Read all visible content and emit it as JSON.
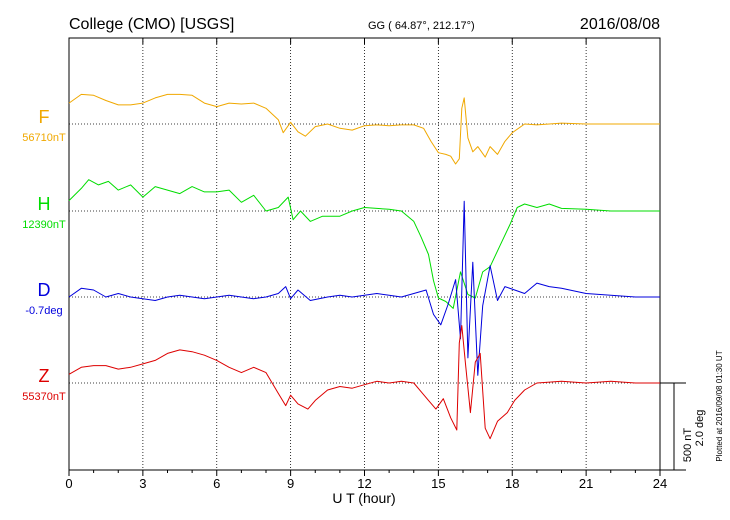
{
  "header": {
    "station": "College (CMO)  [USGS]",
    "coords": "GG ( 64.87°, 212.17°)",
    "date": "2016/08/08"
  },
  "footer": {
    "plotted": "Plotted at 2016/09/08 01:30 UT"
  },
  "chart_data": {
    "type": "line",
    "title": "College (CMO)  [USGS]",
    "xlabel": "U T (hour)",
    "ylabel": "",
    "xlim": [
      0,
      24
    ],
    "x_ticks": [
      0,
      3,
      6,
      9,
      12,
      15,
      18,
      21,
      24
    ],
    "x_tick_labels": [
      "0",
      "3",
      "6",
      "9",
      "12",
      "15",
      "18",
      "21",
      "24"
    ],
    "grid": "dotted, vertical every 3 hours",
    "scale_bar": {
      "value": 500,
      "labels": [
        "500 nT",
        "2.0 deg"
      ]
    },
    "series": [
      {
        "name": "F",
        "baseline_label": "56710nT",
        "baseline": 56710,
        "unit": "nT",
        "color": "#f0a800",
        "x": [
          0,
          0.5,
          1,
          1.5,
          2,
          2.5,
          3,
          3.5,
          4,
          4.5,
          5,
          5.5,
          6,
          6.5,
          7,
          7.5,
          8,
          8.5,
          8.7,
          8.9,
          9,
          9.3,
          9.6,
          10,
          10.5,
          11,
          11.5,
          12,
          12.5,
          13,
          13.5,
          14,
          14.4,
          14.7,
          15,
          15.3,
          15.5,
          15.7,
          15.85,
          15.95,
          16.05,
          16.2,
          16.4,
          16.6,
          16.9,
          17.1,
          17.4,
          17.7,
          18,
          18.5,
          19,
          20,
          21,
          22,
          23,
          24
        ],
        "values": [
          120,
          170,
          165,
          135,
          110,
          110,
          120,
          150,
          170,
          170,
          165,
          120,
          100,
          120,
          115,
          120,
          90,
          25,
          -50,
          -10,
          10,
          -45,
          -70,
          -15,
          0,
          -25,
          -35,
          -10,
          -5,
          -10,
          -5,
          -5,
          -25,
          -100,
          -165,
          -175,
          -185,
          -230,
          -200,
          90,
          150,
          -80,
          -160,
          -130,
          -190,
          -130,
          -175,
          -100,
          -50,
          0,
          -5,
          5,
          0,
          0,
          0,
          0
        ]
      },
      {
        "name": "H",
        "baseline_label": "12390nT",
        "baseline": 12390,
        "unit": "nT",
        "color": "#00dd00",
        "x": [
          0,
          0.5,
          0.8,
          1.2,
          1.6,
          2,
          2.5,
          3,
          3.5,
          4,
          4.5,
          5,
          5.5,
          6,
          6.5,
          7,
          7.5,
          8,
          8.5,
          8.9,
          9.1,
          9.4,
          9.8,
          10.3,
          11,
          11.5,
          12,
          12.5,
          13,
          13.5,
          14,
          14.3,
          14.6,
          14.8,
          15,
          15.3,
          15.6,
          15.9,
          16.2,
          16.5,
          16.8,
          17.1,
          17.5,
          17.9,
          18.2,
          18.5,
          19,
          19.5,
          20,
          21,
          22,
          23,
          24
        ],
        "values": [
          60,
          130,
          180,
          150,
          170,
          120,
          150,
          80,
          140,
          120,
          100,
          140,
          110,
          110,
          120,
          50,
          90,
          0,
          20,
          80,
          -50,
          0,
          -60,
          -30,
          -30,
          0,
          20,
          15,
          10,
          0,
          -60,
          -150,
          -250,
          -400,
          -500,
          -520,
          -560,
          -350,
          -480,
          -500,
          -350,
          -320,
          -200,
          -80,
          20,
          40,
          20,
          40,
          15,
          10,
          0,
          0,
          0
        ]
      },
      {
        "name": "D",
        "baseline_label": "-0.7deg",
        "baseline": -0.7,
        "unit": "deg",
        "color": "#0000dd",
        "x": [
          0,
          0.5,
          1,
          1.5,
          2,
          2.5,
          3,
          3.5,
          4,
          4.5,
          5,
          5.5,
          6,
          6.5,
          7,
          7.5,
          8,
          8.5,
          8.8,
          9,
          9.3,
          9.8,
          10.5,
          11,
          11.5,
          12,
          12.5,
          13,
          13.5,
          14,
          14.5,
          14.8,
          15.1,
          15.4,
          15.7,
          15.9,
          16.05,
          16.2,
          16.4,
          16.6,
          16.8,
          17.1,
          17.4,
          17.7,
          18.1,
          18.5,
          19,
          19.5,
          20,
          21,
          22,
          23,
          24
        ],
        "values": [
          0,
          50,
          40,
          0,
          20,
          0,
          -10,
          -20,
          0,
          10,
          0,
          -10,
          0,
          10,
          0,
          -10,
          0,
          20,
          60,
          -10,
          40,
          -20,
          0,
          10,
          0,
          10,
          20,
          10,
          0,
          20,
          40,
          -100,
          -160,
          -40,
          100,
          -240,
          550,
          -350,
          200,
          -450,
          -50,
          180,
          -20,
          60,
          40,
          20,
          80,
          60,
          50,
          20,
          10,
          0,
          0
        ]
      },
      {
        "name": "Z",
        "baseline_label": "55370nT",
        "baseline": 55370,
        "unit": "nT",
        "color": "#dd0000",
        "x": [
          0,
          0.5,
          1,
          1.5,
          2,
          2.5,
          3,
          3.5,
          4,
          4.5,
          5,
          5.5,
          6,
          6.5,
          7,
          7.5,
          8,
          8.5,
          8.8,
          9,
          9.3,
          9.7,
          10,
          10.5,
          11,
          11.5,
          12,
          12.5,
          13,
          13.5,
          14,
          14.3,
          14.6,
          14.9,
          15.2,
          15.5,
          15.75,
          15.85,
          15.95,
          16.1,
          16.3,
          16.5,
          16.7,
          16.9,
          17.1,
          17.4,
          17.8,
          18.1,
          18.5,
          19,
          20,
          21,
          22,
          23,
          24
        ],
        "values": [
          50,
          90,
          100,
          100,
          80,
          90,
          110,
          130,
          170,
          190,
          180,
          160,
          130,
          90,
          60,
          90,
          60,
          -60,
          -130,
          -70,
          -120,
          -150,
          -100,
          -40,
          -20,
          -30,
          -10,
          10,
          0,
          10,
          0,
          -50,
          -100,
          -150,
          -90,
          -200,
          -270,
          230,
          330,
          110,
          -170,
          120,
          170,
          -260,
          -320,
          -220,
          -170,
          -100,
          -40,
          0,
          10,
          0,
          10,
          0,
          0
        ]
      }
    ]
  }
}
